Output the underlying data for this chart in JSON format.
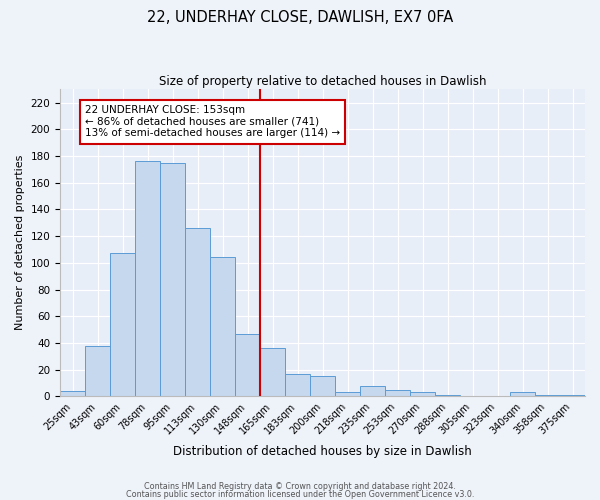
{
  "title": "22, UNDERHAY CLOSE, DAWLISH, EX7 0FA",
  "subtitle": "Size of property relative to detached houses in Dawlish",
  "xlabel": "Distribution of detached houses by size in Dawlish",
  "ylabel": "Number of detached properties",
  "bar_labels": [
    "25sqm",
    "43sqm",
    "60sqm",
    "78sqm",
    "95sqm",
    "113sqm",
    "130sqm",
    "148sqm",
    "165sqm",
    "183sqm",
    "200sqm",
    "218sqm",
    "235sqm",
    "253sqm",
    "270sqm",
    "288sqm",
    "305sqm",
    "323sqm",
    "340sqm",
    "358sqm",
    "375sqm"
  ],
  "bar_values": [
    4,
    38,
    107,
    176,
    175,
    126,
    104,
    47,
    36,
    17,
    15,
    3,
    8,
    5,
    3,
    1,
    0,
    0,
    3,
    1,
    1
  ],
  "bar_color": "#c5d8ee",
  "bar_edge_color": "#5b9bd5",
  "vline_x": 7.5,
  "vline_color": "#cc0000",
  "annotation_title": "22 UNDERHAY CLOSE: 153sqm",
  "annotation_line1": "← 86% of detached houses are smaller (741)",
  "annotation_line2": "13% of semi-detached houses are larger (114) →",
  "annotation_box_edge": "#cc0000",
  "ylim": [
    0,
    230
  ],
  "yticks": [
    0,
    20,
    40,
    60,
    80,
    100,
    120,
    140,
    160,
    180,
    200,
    220
  ],
  "footnote1": "Contains HM Land Registry data © Crown copyright and database right 2024.",
  "footnote2": "Contains public sector information licensed under the Open Government Licence v3.0.",
  "figsize": [
    6.0,
    5.0
  ],
  "dpi": 100
}
